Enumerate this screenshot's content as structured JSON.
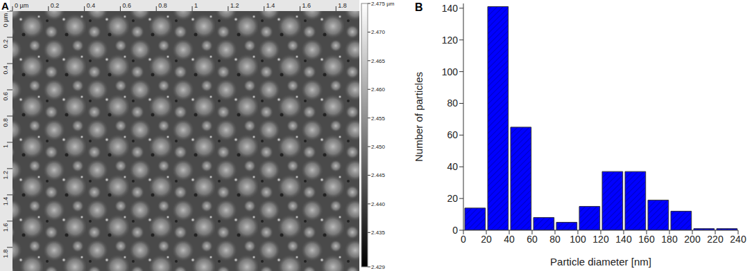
{
  "chart_data": [
    {
      "type": "image",
      "title": "A",
      "xlim": [
        0,
        1.93
      ],
      "xticks": [
        {
          "value": 0,
          "label": "0 µm"
        },
        0.2,
        0.4,
        0.6,
        0.8,
        1,
        1.2,
        1.4,
        1.6,
        1.8
      ],
      "ylim": [
        0,
        1.98
      ],
      "yticks": [
        {
          "value": 0,
          "label": "0 µm"
        },
        0.2,
        0.4,
        0.6,
        0.8,
        1,
        1.2,
        1.4,
        1.6,
        1.8
      ],
      "colorbar_range": [
        2.429,
        2.475
      ],
      "colorbar_ticks": [
        {
          "value": 2.475,
          "label": "2.475 µm"
        },
        {
          "value": 2.47,
          "label": "2.470"
        },
        2.465,
        {
          "value": 2.46,
          "label": "2.460"
        },
        2.455,
        {
          "value": 2.45,
          "label": "2.450"
        },
        2.445,
        {
          "value": 2.44,
          "label": "2.440"
        },
        2.435,
        2.429
      ]
    },
    {
      "type": "histogram",
      "title": "B",
      "x_label": "Particle diameter [nm]",
      "y_label": "Number of particles",
      "bins": [
        0,
        20,
        40,
        60,
        80,
        100,
        120,
        140,
        160,
        180,
        200,
        220,
        240
      ],
      "values": [
        14,
        141,
        65,
        8,
        5,
        15,
        37,
        37,
        19,
        12,
        1,
        1
      ],
      "color": "#0000ff",
      "xlim": [
        0,
        240
      ],
      "xticks": [
        0,
        20,
        40,
        60,
        80,
        100,
        120,
        140,
        160,
        180,
        200,
        220,
        240
      ],
      "ylim": [
        0,
        143
      ],
      "yticks": [
        0,
        20,
        40,
        60,
        80,
        100,
        120,
        140
      ],
      "grid": false
    }
  ]
}
